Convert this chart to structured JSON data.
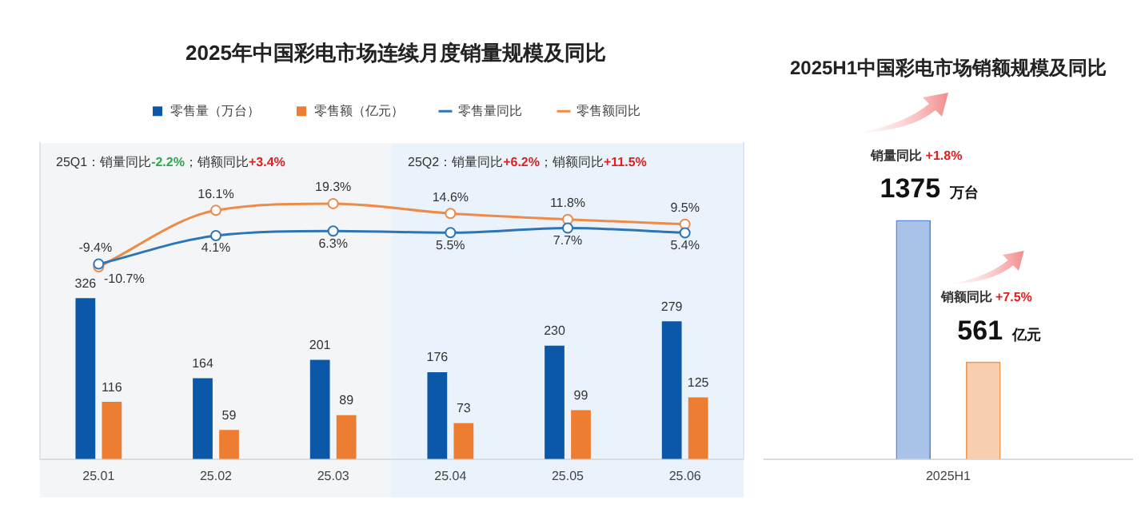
{
  "chart_data": [
    {
      "type": "bar",
      "title": "2025年中国彩电市场连续月度销量规模及同比",
      "categories": [
        "25.01",
        "25.02",
        "25.03",
        "25.04",
        "25.05",
        "25.06"
      ],
      "series": [
        {
          "name": "零售量（万台）",
          "color": "#0b57a8",
          "values": [
            326,
            164,
            201,
            176,
            230,
            279
          ],
          "value_labels": [
            "326",
            "164",
            "201",
            "176",
            "230",
            "279"
          ]
        },
        {
          "name": "零售额（亿元）",
          "color": "#ed7d31",
          "values": [
            116,
            59,
            89,
            73,
            99,
            125
          ],
          "value_labels": [
            "116",
            "59",
            "89",
            "73",
            "99",
            "125"
          ]
        },
        {
          "name": "零售量同比",
          "type": "line",
          "axis": "y2",
          "color": "#2e75b6",
          "values": [
            -9.4,
            4.1,
            6.3,
            5.5,
            7.7,
            5.4
          ],
          "value_labels": [
            "-9.4%",
            "4.1%",
            "6.3%",
            "5.5%",
            "7.7%",
            "5.4%"
          ]
        },
        {
          "name": "零售额同比",
          "type": "line",
          "axis": "y2",
          "color": "#ed8b4a",
          "values": [
            -10.7,
            16.1,
            19.3,
            14.6,
            11.8,
            9.5
          ],
          "value_labels": [
            "-10.7%",
            "16.1%",
            "19.3%",
            "14.6%",
            "11.8%",
            "9.5%"
          ]
        }
      ],
      "bands": [
        {
          "axis": "x",
          "from": "25.01",
          "to": "25.03",
          "color": "#f3f5f7"
        },
        {
          "axis": "x",
          "from": "25.04",
          "to": "25.06",
          "color": "#eaf3fb"
        }
      ],
      "annotations": [
        "25Q1：销量同比-2.2%；销额同比+3.4%",
        "25Q2：销量同比+6.2%；销额同比+11.5%"
      ],
      "ylim": [
        0,
        640
      ],
      "y2lim": [
        -102,
        48
      ],
      "tick_labels": "x",
      "marker": "circle",
      "legend": "top",
      "grid": false
    },
    {
      "type": "bar",
      "title": "2025H1中国彩电市场销额规模及同比",
      "categories": [
        "2025H1"
      ],
      "series": [
        {
          "color": "#a9c2e8",
          "values": [
            1375
          ],
          "value_labels": [
            "1375 万台"
          ]
        },
        {
          "color": "#f8cfae",
          "values": [
            561
          ],
          "value_labels": [
            "561 亿元"
          ]
        }
      ],
      "annotations": [
        "销量同比 +1.8%",
        "销额同比 +7.5%"
      ],
      "legend": false,
      "grid": false
    }
  ]
}
